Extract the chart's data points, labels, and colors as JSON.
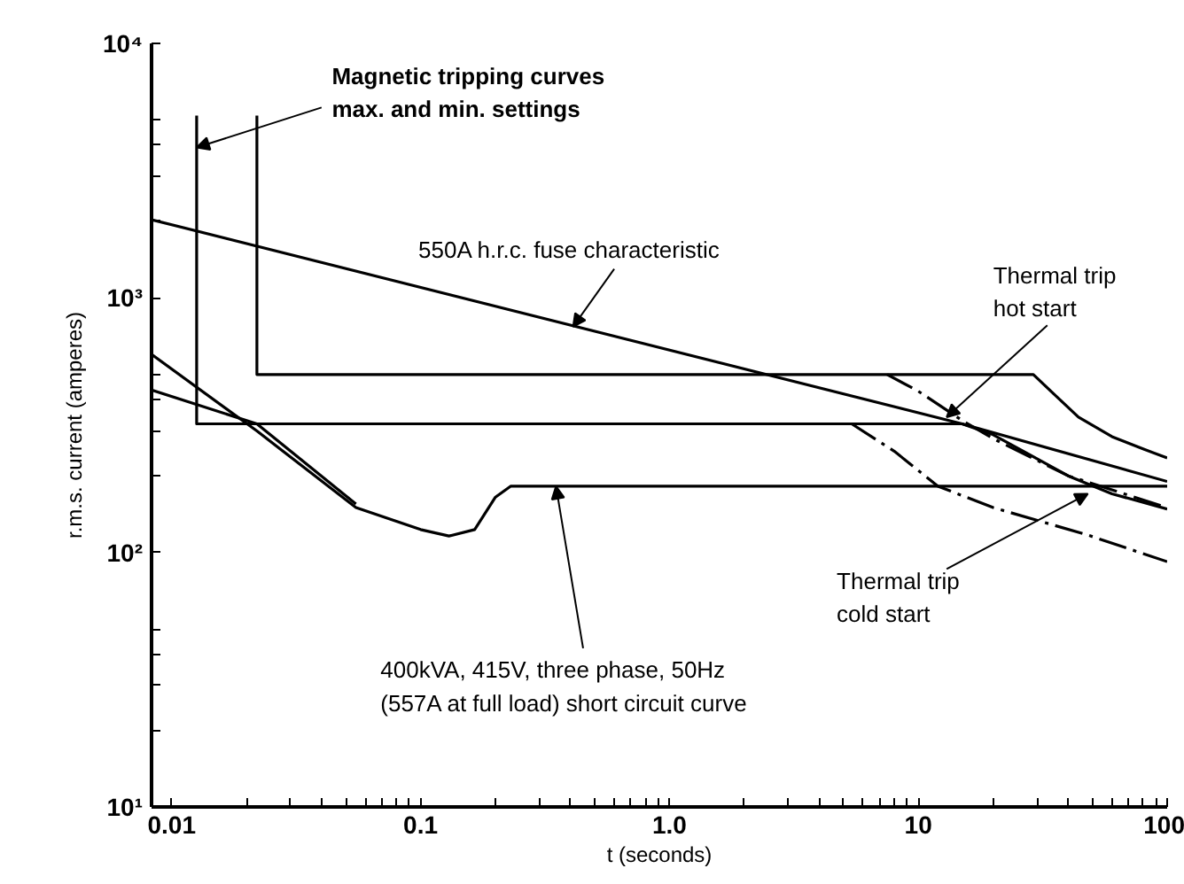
{
  "chart_data": {
    "type": "line",
    "xlabel": "t (seconds)",
    "ylabel": "r.m.s. current (amperes)",
    "log": "xy",
    "xlim": [
      0.0083,
      100
    ],
    "ylim": [
      10,
      10000
    ],
    "xticks": [
      {
        "value": 0.01,
        "label": "0.01"
      },
      {
        "value": 0.02,
        "label": null
      },
      {
        "value": 0.03,
        "label": null
      },
      {
        "value": 0.04,
        "label": null
      },
      {
        "value": 0.05,
        "label": null
      },
      {
        "value": 0.06,
        "label": null
      },
      {
        "value": 0.07,
        "label": null
      },
      {
        "value": 0.08,
        "label": null
      },
      {
        "value": 0.09,
        "label": null
      },
      {
        "value": 0.1,
        "label": "0.1"
      },
      {
        "value": 0.2,
        "label": null
      },
      {
        "value": 0.3,
        "label": null
      },
      {
        "value": 0.4,
        "label": null
      },
      {
        "value": 0.5,
        "label": null
      },
      {
        "value": 0.6,
        "label": null
      },
      {
        "value": 0.7,
        "label": null
      },
      {
        "value": 0.8,
        "label": null
      },
      {
        "value": 0.9,
        "label": null
      },
      {
        "value": 1,
        "label": "1.0"
      },
      {
        "value": 2,
        "label": null
      },
      {
        "value": 3,
        "label": null
      },
      {
        "value": 4,
        "label": null
      },
      {
        "value": 5,
        "label": null
      },
      {
        "value": 6,
        "label": null
      },
      {
        "value": 7,
        "label": null
      },
      {
        "value": 8,
        "label": null
      },
      {
        "value": 9,
        "label": null
      },
      10,
      {
        "value": 20,
        "label": null
      },
      {
        "value": 30,
        "label": null
      },
      {
        "value": 40,
        "label": null
      },
      {
        "value": 50,
        "label": null
      },
      {
        "value": 60,
        "label": null
      },
      {
        "value": 70,
        "label": null
      },
      {
        "value": 80,
        "label": null
      },
      {
        "value": 90,
        "label": null
      },
      100
    ],
    "yticks": [
      {
        "value": 10,
        "label": "10¹"
      },
      {
        "value": 20,
        "label": null
      },
      {
        "value": 30,
        "label": null
      },
      {
        "value": 40,
        "label": null
      },
      {
        "value": 50,
        "label": null
      },
      {
        "value": 100,
        "label": "10²"
      },
      {
        "value": 200,
        "label": null
      },
      {
        "value": 300,
        "label": null
      },
      {
        "value": 400,
        "label": null
      },
      {
        "value": 500,
        "label": null
      },
      {
        "value": 1000,
        "label": "10³"
      },
      {
        "value": 2000,
        "label": null
      },
      {
        "value": 3000,
        "label": null
      },
      {
        "value": 4000,
        "label": null
      },
      {
        "value": 5000,
        "label": null
      },
      {
        "value": 10000,
        "label": "10⁴"
      }
    ],
    "series": [
      {
        "color": "#000000",
        "line_style": "solid",
        "x": [
          0.0126,
          0.0126,
          15,
          20,
          40,
          60,
          100
        ],
        "values": [
          5200,
          320,
          320,
          290,
          200,
          170,
          148
        ]
      },
      {
        "color": "#000000",
        "line_style": "solid",
        "x": [
          0.022,
          0.022,
          29,
          35,
          44,
          60,
          80,
          100
        ],
        "values": [
          5200,
          500,
          500,
          420,
          340,
          285,
          255,
          235
        ]
      },
      {
        "color": "#000000",
        "line_style": "solid",
        "x": [
          0.0083,
          15,
          100
        ],
        "values": [
          2030,
          320,
          190
        ]
      },
      {
        "color": "#000000",
        "line_style": "solid",
        "x": [
          0.0083,
          0.022,
          0.055,
          0.1,
          0.13,
          0.165,
          0.2,
          0.23,
          100
        ],
        "values": [
          600,
          300,
          150,
          123,
          116,
          123,
          165,
          182,
          182
        ]
      },
      {
        "color": "#000000",
        "line_style": "solid",
        "x": [
          0.0083,
          0.022,
          0.055
        ],
        "values": [
          435,
          320,
          155
        ]
      },
      {
        "color": "#000000",
        "line_style": "dashdot",
        "x": [
          7.5,
          10,
          15,
          20,
          40,
          100
        ],
        "values": [
          500,
          430,
          330,
          280,
          200,
          150
        ]
      },
      {
        "color": "#000000",
        "line_style": "dashdot",
        "x": [
          5.4,
          8,
          12,
          20,
          48,
          100
        ],
        "values": [
          320,
          250,
          182,
          150,
          117,
          92
        ]
      }
    ],
    "annotations": [
      {
        "text": "Magnetic tripping curves\nmax. and min. settings",
        "x": 0.0126,
        "y": 3900
      },
      {
        "text": "550A h.r.c. fuse characteristic",
        "x": 0.41,
        "y": 770
      },
      {
        "text": "Thermal trip\nhot start",
        "x": 13,
        "y": 340
      },
      {
        "text": "Thermal trip\ncold start",
        "x": 48,
        "y": 170
      },
      {
        "text": "400kVA, 415V, three phase, 50Hz\n(557A at full load) short circuit curve",
        "x": 0.35,
        "y": 182
      }
    ]
  }
}
